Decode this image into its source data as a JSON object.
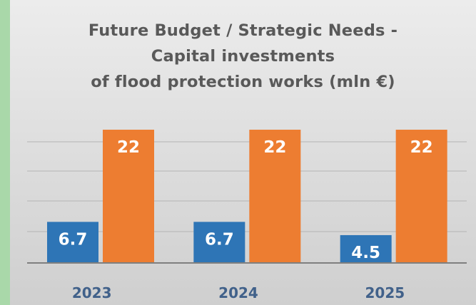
{
  "chart_data": {
    "type": "bar",
    "title_lines": [
      "Future Budget / Strategic Needs -",
      "Capital investments",
      "of flood protection works (mln €)"
    ],
    "categories": [
      "2023",
      "2024",
      "2025"
    ],
    "series": [
      {
        "values": [
          6.7,
          6.7,
          4.5
        ],
        "color": "#2e75b6"
      },
      {
        "values": [
          22,
          22,
          22
        ],
        "color": "#ed7d31"
      }
    ],
    "ylim": [
      0,
      22
    ],
    "grid": true,
    "legend": "none",
    "data_labels": true
  }
}
